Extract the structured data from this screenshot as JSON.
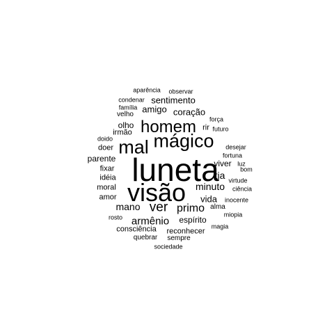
{
  "word_cloud": {
    "text_color": "#000000",
    "background": "#ffffff",
    "words": [
      {
        "text": "luneta"
      },
      {
        "text": "visão"
      },
      {
        "text": "mágico"
      },
      {
        "text": "mal"
      },
      {
        "text": "homem"
      },
      {
        "text": "ver"
      },
      {
        "text": "primo"
      },
      {
        "text": "armênio"
      },
      {
        "text": "mano"
      },
      {
        "text": "minuto"
      },
      {
        "text": "vida"
      },
      {
        "text": "tia"
      },
      {
        "text": "sentimento"
      },
      {
        "text": "coração"
      },
      {
        "text": "amigo"
      },
      {
        "text": "espírito"
      },
      {
        "text": "consciência"
      },
      {
        "text": "reconhecer"
      },
      {
        "text": "parente"
      },
      {
        "text": "viver"
      },
      {
        "text": "olho"
      },
      {
        "text": "fixar"
      },
      {
        "text": "idéia"
      },
      {
        "text": "moral"
      },
      {
        "text": "amor"
      },
      {
        "text": "doer"
      },
      {
        "text": "irmão"
      },
      {
        "text": "rir"
      },
      {
        "text": "quebrar"
      },
      {
        "text": "sempre"
      },
      {
        "text": "alma"
      },
      {
        "text": "observar"
      },
      {
        "text": "aparência"
      },
      {
        "text": "condenar"
      },
      {
        "text": "família"
      },
      {
        "text": "velho"
      },
      {
        "text": "força"
      },
      {
        "text": "futuro"
      },
      {
        "text": "doido"
      },
      {
        "text": "desejar"
      },
      {
        "text": "fortuna"
      },
      {
        "text": "luz"
      },
      {
        "text": "bom"
      },
      {
        "text": "virtude"
      },
      {
        "text": "ciência"
      },
      {
        "text": "inocente"
      },
      {
        "text": "miopia"
      },
      {
        "text": "rosto"
      },
      {
        "text": "magia"
      },
      {
        "text": "sociedade"
      }
    ]
  }
}
